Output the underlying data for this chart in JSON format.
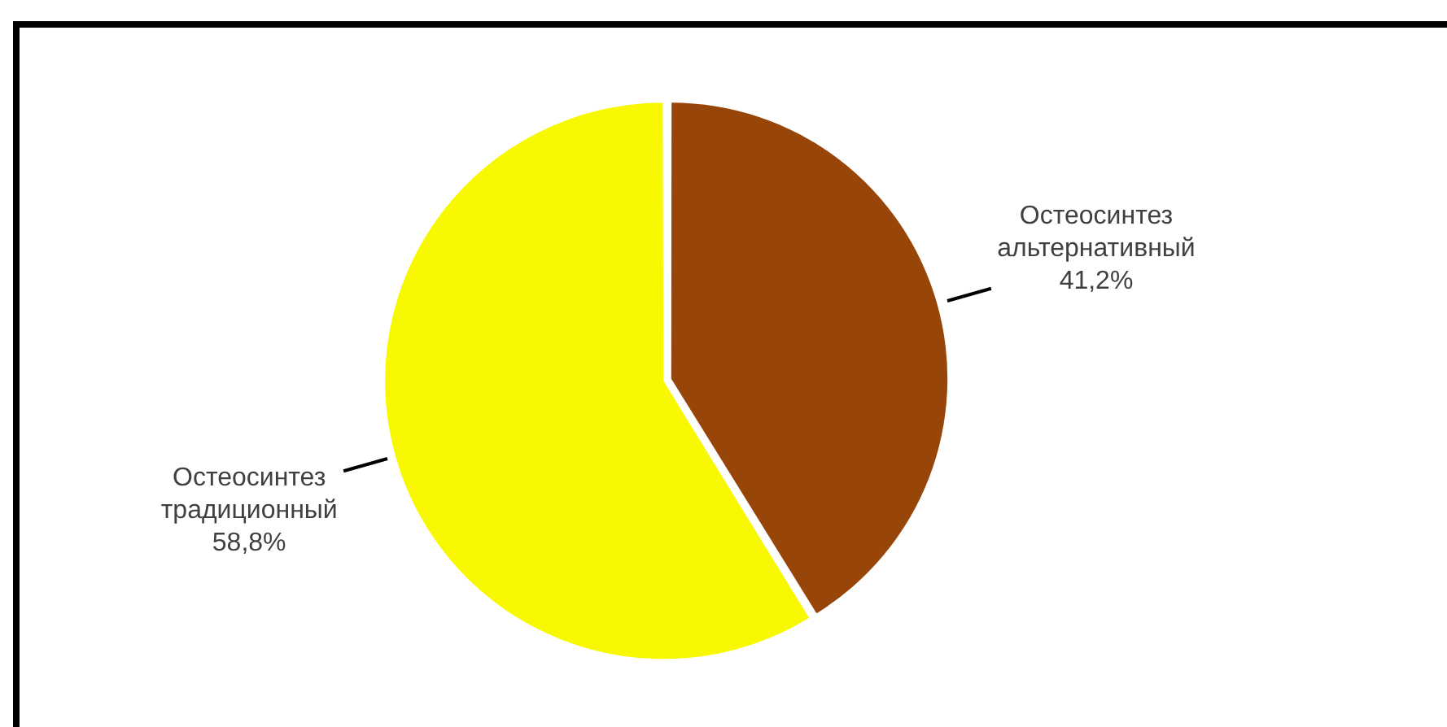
{
  "chart_data": {
    "type": "pie",
    "categories": [
      "Остеосинтез альтернативный",
      "Остеосинтез традиционный"
    ],
    "values": [
      41.2,
      58.8
    ],
    "colors": [
      "#974508",
      "#f8f800"
    ],
    "value_labels": [
      "41,2%",
      "58,8%"
    ]
  }
}
